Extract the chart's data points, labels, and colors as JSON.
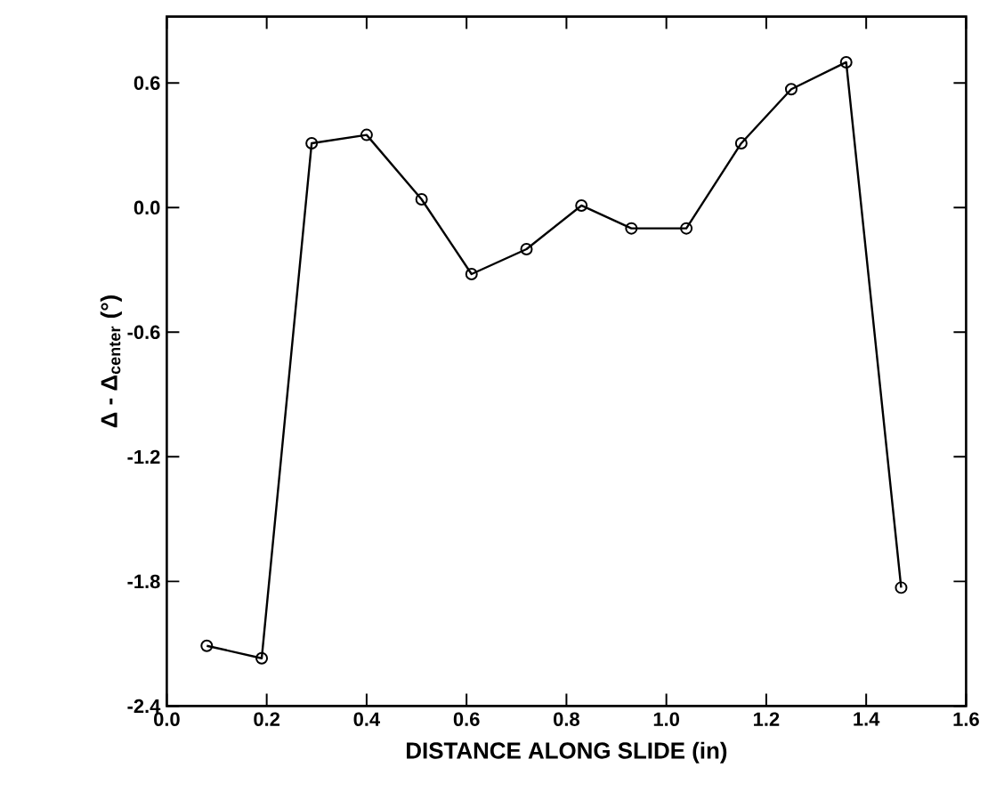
{
  "chart_data": {
    "type": "line",
    "xlabel": "DISTANCE ALONG SLIDE (in)",
    "ylabel": "Δ - Δ$_{center}$ (°)",
    "x": [
      0.08,
      0.19,
      0.29,
      0.4,
      0.51,
      0.61,
      0.72,
      0.83,
      0.93,
      1.04,
      1.15,
      1.25,
      1.36,
      1.47
    ],
    "series": [
      {
        "color": "#000000",
        "values": [
          -2.11,
          -2.17,
          0.31,
          0.35,
          0.04,
          -0.32,
          -0.2,
          0.01,
          -0.1,
          -0.1,
          0.31,
          0.57,
          0.7,
          -1.83
        ]
      }
    ],
    "xlim": [
      0,
      1.6
    ],
    "ylim": [
      -2.4,
      0.92
    ],
    "xticks": [
      {
        "value": 0,
        "label": "0.0"
      },
      0.2,
      0.4,
      0.6,
      0.8,
      {
        "value": 1,
        "label": "1.0"
      },
      1.2,
      1.4,
      1.6
    ],
    "yticks": [
      -2.4,
      -1.8,
      -1.2,
      -0.6,
      {
        "value": 0,
        "label": "0.0"
      },
      0.6
    ],
    "marker": "circle",
    "line_style": "solid"
  }
}
